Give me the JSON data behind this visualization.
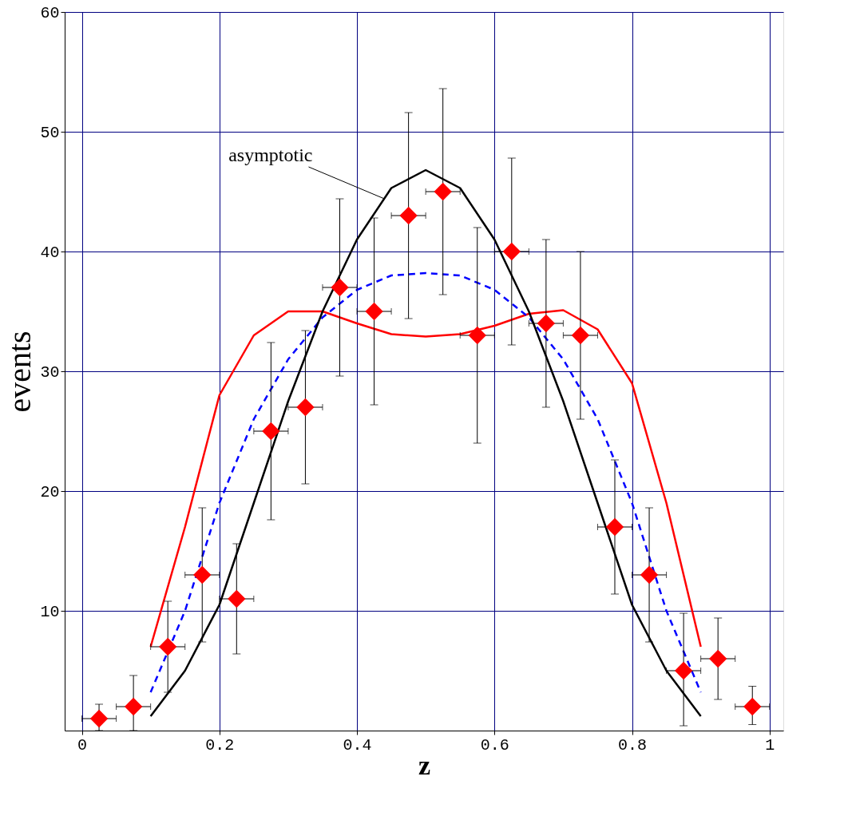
{
  "chart_data": {
    "type": "scatter",
    "xlabel": "z",
    "ylabel": "events",
    "xlim": [
      -0.025,
      1.02
    ],
    "ylim": [
      0,
      60
    ],
    "xticks": [
      0,
      0.2,
      0.4,
      0.6,
      0.8,
      1
    ],
    "yticks": [
      10,
      20,
      30,
      40,
      50,
      60
    ],
    "grid": true,
    "series": [
      {
        "type": "line",
        "color": "#ff0000",
        "line_style": "solid",
        "x": [
          0.1,
          0.15,
          0.2,
          0.25,
          0.3,
          0.35,
          0.4,
          0.45,
          0.5,
          0.55,
          0.6,
          0.65,
          0.7,
          0.75,
          0.8,
          0.85,
          0.9
        ],
        "values": [
          7,
          17,
          28,
          33,
          35,
          35,
          34,
          33.1,
          32.9,
          33.1,
          33.8,
          34.8,
          35.1,
          33.5,
          29,
          19,
          7
        ]
      },
      {
        "type": "line",
        "color": "#0000ff",
        "line_style": "dashed",
        "x": [
          0.1,
          0.15,
          0.2,
          0.25,
          0.3,
          0.35,
          0.4,
          0.45,
          0.5,
          0.55,
          0.6,
          0.65,
          0.7,
          0.75,
          0.8,
          0.85,
          0.9
        ],
        "values": [
          3.2,
          10,
          19,
          26,
          31,
          34.5,
          36.8,
          38,
          38.2,
          38,
          36.8,
          34.5,
          31,
          26,
          19,
          10,
          3.2
        ]
      },
      {
        "type": "line",
        "color": "#000000",
        "line_style": "solid",
        "x": [
          0.1,
          0.15,
          0.2,
          0.25,
          0.3,
          0.35,
          0.4,
          0.45,
          0.5,
          0.55,
          0.6,
          0.65,
          0.7,
          0.75,
          0.8,
          0.85,
          0.9
        ],
        "values": [
          1.2,
          5,
          10.5,
          19,
          27.5,
          35,
          41,
          45.3,
          46.8,
          45.3,
          41,
          35,
          27.5,
          19,
          10.5,
          5,
          1.2
        ]
      },
      {
        "color": "#ff0000",
        "marker": "diamond",
        "x": [
          0.025,
          0.075,
          0.125,
          0.175,
          0.225,
          0.275,
          0.325,
          0.375,
          0.425,
          0.475,
          0.525,
          0.575,
          0.625,
          0.675,
          0.725,
          0.775,
          0.825,
          0.875,
          0.925,
          0.975
        ],
        "values": [
          1,
          2,
          7,
          13,
          11,
          25,
          27,
          37,
          35,
          43,
          45,
          33,
          40,
          34,
          33,
          17,
          13,
          5,
          6,
          2
        ],
        "errors": [
          [
            0,
            2.2
          ],
          [
            0,
            4.6
          ],
          [
            3.2,
            10.8
          ],
          [
            7.4,
            18.6
          ],
          [
            6.4,
            15.6
          ],
          [
            17.6,
            32.4
          ],
          [
            20.6,
            33.4
          ],
          [
            29.6,
            44.4
          ],
          [
            27.2,
            42.8
          ],
          [
            34.4,
            51.6
          ],
          [
            36.4,
            53.6
          ],
          [
            24,
            42
          ],
          [
            32.2,
            47.8
          ],
          [
            27,
            41
          ],
          [
            26,
            40
          ],
          [
            11.4,
            22.6
          ],
          [
            7.4,
            18.6
          ],
          [
            0.4,
            9.8
          ],
          [
            2.6,
            9.4
          ],
          [
            0.5,
            3.7
          ]
        ],
        "xerrors": [
          0.025,
          0.025,
          0.025,
          0.025,
          0.025,
          0.025,
          0.025,
          0.025,
          0.025,
          0.025,
          0.025,
          0.025,
          0.025,
          0.025,
          0.025,
          0.025,
          0.025,
          0.025,
          0.025,
          0.025
        ]
      }
    ],
    "annotations": [
      {
        "text": "asymptotic",
        "x": 0.44,
        "y": 44.4
      }
    ]
  }
}
